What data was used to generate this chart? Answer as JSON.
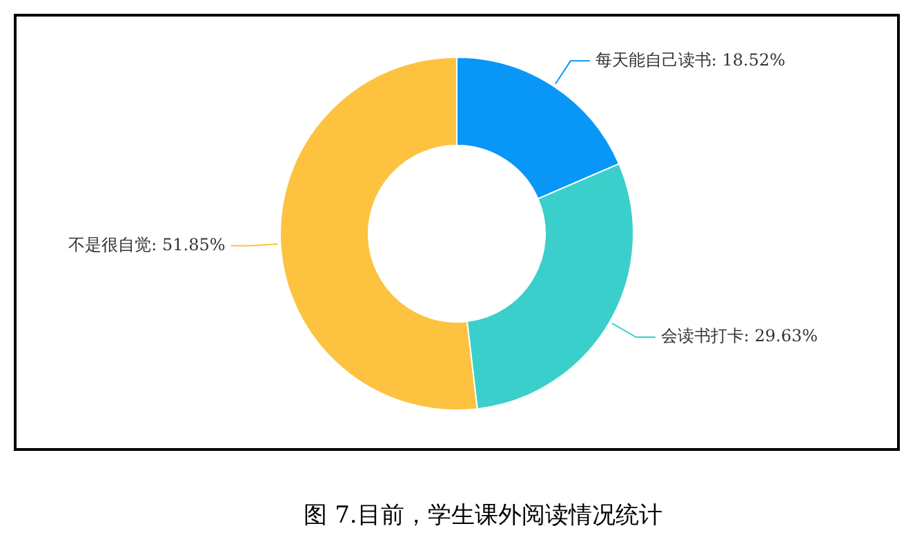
{
  "chart_data": {
    "type": "donut",
    "title": "图 7.目前，学生课外阅读情况统计",
    "categories": [
      "每天能自己读书",
      "会读书打卡",
      "不是很自觉"
    ],
    "values": [
      18.52,
      29.63,
      51.85
    ],
    "value_labels": [
      "18.52%",
      "29.63%",
      "51.85%"
    ],
    "colors": [
      "#0997f7",
      "#3bcfcb",
      "#fdc23f"
    ],
    "legend": false
  }
}
